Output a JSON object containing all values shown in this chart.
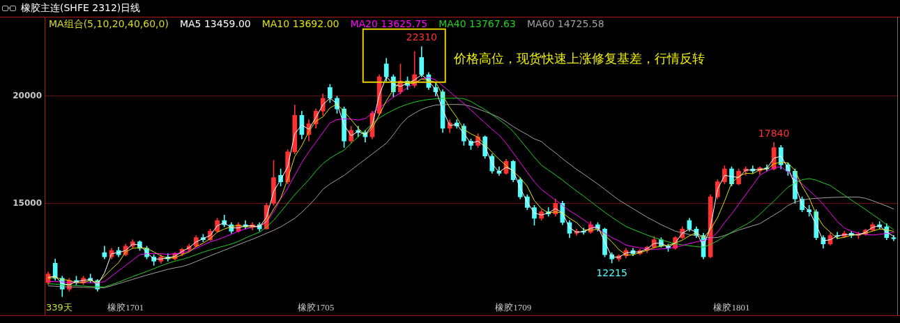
{
  "chart_data": {
    "type": "candlestick",
    "title": "橡胶主连(SHFE 2312)日线",
    "legend_title": "MA组合(5,10,20,40,60,0)",
    "categories": [
      null,
      null,
      null,
      null,
      null,
      null,
      null,
      null,
      null,
      null,
      null,
      "橡胶1701",
      null,
      null,
      null,
      null,
      null,
      null,
      null,
      null,
      null,
      null,
      null,
      null,
      null,
      null,
      null,
      null,
      null,
      null,
      null,
      null,
      null,
      null,
      null,
      null,
      null,
      null,
      "橡胶1705",
      null,
      null,
      null,
      null,
      null,
      null,
      null,
      null,
      null,
      null,
      null,
      null,
      null,
      null,
      null,
      null,
      null,
      null,
      null,
      null,
      null,
      null,
      null,
      null,
      null,
      null,
      null,
      "橡胶1709",
      null,
      null,
      null,
      null,
      null,
      null,
      null,
      null,
      null,
      null,
      null,
      null,
      null,
      null,
      null,
      null,
      null,
      null,
      null,
      null,
      null,
      null,
      null,
      null,
      null,
      null,
      null,
      null,
      null,
      null,
      "橡胶1801",
      null,
      null,
      null,
      null,
      null,
      null,
      null,
      null,
      null,
      null,
      null,
      null,
      null,
      null,
      null,
      null,
      null,
      null,
      null,
      null,
      null,
      null,
      null
    ],
    "series": [
      {
        "ohlc": [
          [
            11300,
            11800,
            11200,
            11700
          ],
          [
            12200,
            12400,
            11400,
            11500
          ],
          [
            11500,
            11600,
            10650,
            11000
          ],
          [
            11000,
            11500,
            10900,
            11400
          ],
          [
            11400,
            11600,
            11200,
            11300
          ],
          [
            11300,
            11600,
            11200,
            11500
          ],
          [
            11500,
            11700,
            11300,
            11400
          ],
          [
            11400,
            11450,
            10900,
            11000
          ],
          [
            12700,
            13000,
            12400,
            12500
          ],
          [
            12500,
            12900,
            12400,
            12800
          ],
          [
            12800,
            12950,
            12500,
            12600
          ],
          [
            12600,
            13100,
            12550,
            13000
          ],
          [
            13000,
            13300,
            12900,
            13200
          ],
          [
            13200,
            13250,
            12800,
            12900
          ],
          [
            12900,
            13000,
            12400,
            12500
          ],
          [
            12500,
            12600,
            12100,
            12300
          ],
          [
            12300,
            12600,
            12200,
            12500
          ],
          [
            12500,
            12650,
            12300,
            12400
          ],
          [
            12400,
            12700,
            12350,
            12650
          ],
          [
            12650,
            12900,
            12550,
            12850
          ],
          [
            12850,
            13100,
            12750,
            13000
          ],
          [
            13000,
            13500,
            12950,
            13400
          ],
          [
            13400,
            13550,
            13200,
            13300
          ],
          [
            13300,
            13800,
            13250,
            13700
          ],
          [
            13700,
            14300,
            13650,
            14200
          ],
          [
            14200,
            14450,
            13900,
            14000
          ],
          [
            14000,
            14100,
            13600,
            13700
          ],
          [
            13700,
            14100,
            13650,
            14000
          ],
          [
            14000,
            14200,
            13800,
            13900
          ],
          [
            13900,
            14100,
            13750,
            14000
          ],
          [
            14000,
            14100,
            13700,
            13800
          ],
          [
            13800,
            15000,
            13800,
            14900
          ],
          [
            15000,
            17000,
            14900,
            16200
          ],
          [
            16300,
            16600,
            15800,
            16000
          ],
          [
            16000,
            17500,
            15900,
            17400
          ],
          [
            17400,
            19580,
            17300,
            19100
          ],
          [
            19100,
            19300,
            18000,
            18200
          ],
          [
            18200,
            18900,
            17900,
            18700
          ],
          [
            18700,
            19400,
            18500,
            19300
          ],
          [
            19300,
            20100,
            19100,
            19900
          ],
          [
            20400,
            20550,
            19700,
            19900
          ],
          [
            19900,
            20000,
            19200,
            19400
          ],
          [
            19400,
            19500,
            17600,
            17900
          ],
          [
            17900,
            18600,
            17800,
            18400
          ],
          [
            18400,
            18600,
            18100,
            18300
          ],
          [
            18300,
            18400,
            17850,
            18100
          ],
          [
            18100,
            19300,
            18000,
            19200
          ],
          [
            19200,
            21000,
            19100,
            20900
          ],
          [
            21500,
            21760,
            20700,
            20900
          ],
          [
            20900,
            21000,
            19950,
            20200
          ],
          [
            20200,
            21500,
            20100,
            20700
          ],
          [
            20700,
            20900,
            20300,
            20500
          ],
          [
            20500,
            22080,
            20400,
            21000
          ],
          [
            21800,
            22310,
            20900,
            21000
          ],
          [
            21000,
            21100,
            20300,
            20400
          ],
          [
            20400,
            20600,
            20000,
            20200
          ],
          [
            20200,
            20300,
            18300,
            18500
          ],
          [
            18500,
            18900,
            18300,
            18750
          ],
          [
            18750,
            18900,
            18500,
            18600
          ],
          [
            18600,
            18700,
            17700,
            17900
          ],
          [
            17900,
            18000,
            17500,
            17700
          ],
          [
            17700,
            18250,
            17600,
            18100
          ],
          [
            18100,
            18150,
            17100,
            17200
          ],
          [
            17200,
            17300,
            16400,
            16500
          ],
          [
            16500,
            16700,
            16300,
            16400
          ],
          [
            16400,
            17050,
            16350,
            16950
          ],
          [
            16950,
            17000,
            16000,
            16100
          ],
          [
            16100,
            16200,
            15200,
            15300
          ],
          [
            15300,
            15400,
            14700,
            14800
          ],
          [
            14800,
            14900,
            13970,
            14300
          ],
          [
            14300,
            14700,
            14200,
            14600
          ],
          [
            14600,
            14800,
            14400,
            14500
          ],
          [
            14500,
            15200,
            14400,
            15000
          ],
          [
            15000,
            15100,
            14000,
            14100
          ],
          [
            14100,
            14200,
            13400,
            13600
          ],
          [
            13600,
            13800,
            13500,
            13700
          ],
          [
            13700,
            13850,
            13550,
            13650
          ],
          [
            13650,
            14150,
            13600,
            14000
          ],
          [
            14000,
            14100,
            13700,
            13800
          ],
          [
            13800,
            13850,
            12500,
            12600
          ],
          [
            12600,
            12700,
            12215,
            12400
          ],
          [
            12400,
            12600,
            12300,
            12550
          ],
          [
            12550,
            12900,
            12450,
            12800
          ],
          [
            12800,
            12900,
            12550,
            12650
          ],
          [
            12650,
            12850,
            12600,
            12800
          ],
          [
            12800,
            13000,
            12700,
            12950
          ],
          [
            12950,
            13450,
            12900,
            13300
          ],
          [
            13300,
            13400,
            12950,
            13000
          ],
          [
            13000,
            13100,
            12750,
            12900
          ],
          [
            12900,
            13450,
            12850,
            13400
          ],
          [
            13400,
            13900,
            13350,
            13800
          ],
          [
            14200,
            14300,
            13700,
            13800
          ],
          [
            13800,
            13900,
            13400,
            13500
          ],
          [
            13500,
            13600,
            12400,
            12500
          ],
          [
            12500,
            15400,
            12450,
            15300
          ],
          [
            15300,
            16100,
            15200,
            16000
          ],
          [
            16000,
            16750,
            15900,
            16600
          ],
          [
            16600,
            16700,
            15800,
            15900
          ],
          [
            15900,
            16600,
            15850,
            16500
          ],
          [
            16500,
            16700,
            16300,
            16600
          ],
          [
            16600,
            16750,
            16400,
            16500
          ],
          [
            16500,
            16700,
            16350,
            16650
          ],
          [
            16650,
            16800,
            16500,
            16600
          ],
          [
            16600,
            17840,
            16550,
            17600
          ],
          [
            17600,
            17700,
            16600,
            16800
          ],
          [
            16800,
            16900,
            16300,
            16500
          ],
          [
            16500,
            16600,
            15000,
            15200
          ],
          [
            15200,
            15300,
            14600,
            14700
          ],
          [
            14700,
            14900,
            14400,
            14600
          ],
          [
            14600,
            14700,
            13300,
            13400
          ],
          [
            13400,
            13500,
            12900,
            13100
          ],
          [
            13100,
            13600,
            13050,
            13500
          ],
          [
            13500,
            13650,
            13350,
            13450
          ],
          [
            13450,
            13700,
            13400,
            13600
          ],
          [
            13600,
            13700,
            13400,
            13500
          ],
          [
            13500,
            13650,
            13350,
            13550
          ],
          [
            13550,
            13800,
            13500,
            13750
          ],
          [
            13750,
            14100,
            13700,
            14000
          ],
          [
            14000,
            14150,
            13800,
            13900
          ],
          [
            13900,
            14050,
            13300,
            13400
          ],
          [
            13400,
            13500,
            13250,
            13350
          ]
        ],
        "colors": [
          "#ff3232",
          "#54fcfc",
          "#54fcfc",
          "#ff3232",
          "#54fcfc",
          "#ff3232",
          "#54fcfc",
          "#54fcfc",
          "#54fcfc",
          "#ff3232",
          "#54fcfc",
          "#ff3232",
          "#ff3232",
          "#54fcfc",
          "#54fcfc",
          "#54fcfc",
          "#ff3232",
          "#54fcfc",
          "#ff3232",
          "#ff3232",
          "#ff3232",
          "#ff3232",
          "#54fcfc",
          "#ff3232",
          "#ff3232",
          "#54fcfc",
          "#54fcfc",
          "#ff3232",
          "#54fcfc",
          "#ff3232",
          "#54fcfc",
          "#ff3232",
          "#ff3232",
          "#54fcfc",
          "#ff3232",
          "#ff3232",
          "#54fcfc",
          "#ff3232",
          "#ff3232",
          "#ff3232",
          "#54fcfc",
          "#54fcfc",
          "#54fcfc",
          "#ff3232",
          "#54fcfc",
          "#54fcfc",
          "#ff3232",
          "#ff3232",
          "#54fcfc",
          "#54fcfc",
          "#ff3232",
          "#54fcfc",
          "#ff3232",
          "#54fcfc",
          "#54fcfc",
          "#54fcfc",
          "#54fcfc",
          "#ff3232",
          "#54fcfc",
          "#54fcfc",
          "#54fcfc",
          "#ff3232",
          "#54fcfc",
          "#54fcfc",
          "#54fcfc",
          "#ff3232",
          "#54fcfc",
          "#54fcfc",
          "#54fcfc",
          "#54fcfc",
          "#ff3232",
          "#54fcfc",
          "#ff3232",
          "#54fcfc",
          "#54fcfc",
          "#ff3232",
          "#54fcfc",
          "#ff3232",
          "#54fcfc",
          "#54fcfc",
          "#54fcfc",
          "#ff3232",
          "#ff3232",
          "#54fcfc",
          "#ff3232",
          "#ff3232",
          "#ff3232",
          "#54fcfc",
          "#54fcfc",
          "#ff3232",
          "#ff3232",
          "#54fcfc",
          "#54fcfc",
          "#54fcfc",
          "#ff3232",
          "#ff3232",
          "#ff3232",
          "#54fcfc",
          "#ff3232",
          "#ff3232",
          "#54fcfc",
          "#ff3232",
          "#54fcfc",
          "#ff3232",
          "#54fcfc",
          "#54fcfc",
          "#54fcfc",
          "#54fcfc",
          "#54fcfc",
          "#54fcfc",
          "#54fcfc",
          "#ff3232",
          "#54fcfc",
          "#ff3232",
          "#54fcfc",
          "#ff3232",
          "#ff3232",
          "#ff3232",
          "#54fcfc",
          "#54fcfc",
          "#54fcfc"
        ]
      },
      {
        "type": "line",
        "name": "MA5 13459.00",
        "color": "#ffffff",
        "values": [
          11550,
          11600,
          11250,
          11200,
          11350,
          11400,
          11450,
          11200,
          11750,
          12650,
          12700,
          12800,
          13100,
          13050,
          12700,
          12400,
          12400,
          12450,
          12530,
          12750,
          12930,
          13200,
          13350,
          13500,
          13950,
          14100,
          13850,
          13850,
          13950,
          13950,
          13900,
          14350,
          15550,
          16100,
          16700,
          18250,
          18650,
          18450,
          19000,
          19600,
          19900,
          19650,
          18650,
          18150,
          18350,
          18200,
          18650,
          20050,
          20900,
          20550,
          20450,
          20600,
          20750,
          21000,
          20700,
          20300,
          19350,
          18630,
          18680,
          18250,
          17800,
          17900,
          17650,
          16850,
          16450,
          16680,
          16530,
          15700,
          15050,
          14550,
          14450,
          14550,
          14750,
          14550,
          13850,
          13650,
          13680,
          13830,
          13900,
          13200,
          12500,
          12480,
          12680,
          12730,
          12730,
          12880,
          13130,
          13150,
          12950,
          13150,
          13600,
          13800,
          13650,
          13000,
          13900,
          15650,
          16300,
          16250,
          16200,
          16550,
          16550,
          16580,
          16630,
          17100,
          17200,
          16650,
          15850,
          14950,
          14650,
          14000,
          13250,
          13300,
          13480,
          13530,
          13550,
          13530,
          13650,
          13880,
          13950,
          13650,
          13460
        ]
      },
      {
        "type": "line",
        "name": "MA10 13692.00",
        "color": "#e0e000",
        "values": [
          11500,
          11550,
          11450,
          11400,
          11300,
          11300,
          11400,
          11300,
          11600,
          11930,
          12230,
          12730,
          12900,
          12930,
          12900,
          12730,
          12550,
          12430,
          12460,
          12600,
          12730,
          12980,
          13140,
          13350,
          13650,
          13800,
          13900,
          13980,
          13900,
          13900,
          13930,
          14150,
          14730,
          15230,
          16130,
          17180,
          17680,
          18350,
          18830,
          19030,
          19450,
          19630,
          19280,
          18900,
          18500,
          18180,
          18500,
          19130,
          19780,
          20300,
          20680,
          20580,
          20600,
          20800,
          20730,
          20650,
          20030,
          19460,
          19010,
          18440,
          18240,
          18080,
          17730,
          17380,
          17050,
          16760,
          16490,
          16190,
          15790,
          15130,
          14750,
          14550,
          14600,
          14550,
          14300,
          14100,
          13760,
          13740,
          13790,
          13510,
          13200,
          12840,
          12590,
          12600,
          12700,
          12800,
          12930,
          13010,
          13040,
          13150,
          13280,
          13480,
          13630,
          13400,
          13780,
          14330,
          15100,
          15950,
          16250,
          16400,
          16380,
          16560,
          16590,
          16840,
          16910,
          16880,
          16530,
          15800,
          15250,
          14480,
          13950,
          13650,
          13360,
          13410,
          13510,
          13530,
          13600,
          13700,
          13800,
          13760,
          13690
        ]
      },
      {
        "type": "line",
        "name": "MA20 13625.75",
        "color": "#ff00ff",
        "values": [
          11350,
          11350,
          11330,
          11320,
          11300,
          11300,
          11300,
          11280,
          11350,
          11600,
          11850,
          12100,
          12350,
          12600,
          12650,
          12650,
          12650,
          12620,
          12650,
          12690,
          12780,
          12900,
          13050,
          13200,
          13300,
          13420,
          13550,
          13700,
          13800,
          13880,
          13930,
          14100,
          14600,
          15200,
          15700,
          16300,
          16900,
          17400,
          17850,
          18300,
          18750,
          18900,
          18940,
          18920,
          18880,
          18950,
          19200,
          19450,
          19700,
          19950,
          20150,
          20400,
          20600,
          20800,
          20870,
          20750,
          20480,
          20200,
          19920,
          19650,
          19350,
          19050,
          18750,
          18450,
          18180,
          17800,
          17350,
          16900,
          16450,
          16000,
          15650,
          15400,
          15150,
          14900,
          14650,
          14450,
          14230,
          14000,
          13800,
          13600,
          13400,
          13250,
          13050,
          12980,
          12920,
          12870,
          12850,
          12870,
          12900,
          12950,
          13030,
          13120,
          13200,
          13270,
          13350,
          13650,
          14100,
          14500,
          14950,
          15400,
          15850,
          16300,
          16500,
          16650,
          16700,
          16450,
          16170,
          15900,
          15600,
          15300,
          14950,
          14550,
          14150,
          13850,
          13700,
          13600,
          13550,
          13520,
          13550,
          13600,
          13630
        ]
      },
      {
        "type": "line",
        "name": "MA40 13767.63",
        "color": "#20d020",
        "values": [
          11250,
          11230,
          11200,
          11180,
          11160,
          11140,
          11120,
          11100,
          11100,
          11200,
          11320,
          11450,
          11580,
          11700,
          11820,
          11950,
          12080,
          12200,
          12300,
          12380,
          12480,
          12600,
          12720,
          12820,
          12920,
          13010,
          13100,
          13220,
          13380,
          13520,
          13650,
          13900,
          14200,
          14600,
          15000,
          15400,
          15750,
          16100,
          16500,
          16850,
          17100,
          17300,
          17480,
          17800,
          18100,
          18400,
          18700,
          18980,
          19180,
          19350,
          19500,
          19620,
          19720,
          19790,
          19840,
          19870,
          19890,
          19900,
          19900,
          19880,
          19750,
          19550,
          19370,
          19130,
          18900,
          18650,
          18350,
          17950,
          17550,
          17150,
          16780,
          16550,
          16320,
          16080,
          15820,
          15570,
          15330,
          15080,
          14830,
          14580,
          14350,
          14130,
          13920,
          13780,
          13650,
          13520,
          13400,
          13300,
          13200,
          13110,
          13060,
          13020,
          12980,
          12950,
          13080,
          13250,
          13450,
          13650,
          13830,
          14000,
          14200,
          14480,
          14800,
          15100,
          15430,
          15750,
          15950,
          16100,
          16150,
          16080,
          15950,
          15830,
          15600,
          15380,
          15150,
          14930,
          14710,
          14480,
          14250,
          14000,
          13770
        ]
      },
      {
        "type": "line",
        "name": "MA60 14725.58",
        "color": "#a0a0a0",
        "values": [
          11150,
          11130,
          11110,
          11100,
          11090,
          11080,
          11070,
          11060,
          11060,
          11150,
          11250,
          11350,
          11450,
          11550,
          11650,
          11740,
          11830,
          11920,
          11990,
          12050,
          12150,
          12280,
          12420,
          12550,
          12680,
          12810,
          12940,
          13070,
          13200,
          13320,
          13460,
          13600,
          13740,
          13900,
          14100,
          14300,
          14580,
          14900,
          15250,
          15650,
          15900,
          16100,
          16300,
          16550,
          16800,
          17050,
          17300,
          17550,
          17800,
          18200,
          18650,
          19000,
          19200,
          19380,
          19500,
          19580,
          19600,
          19610,
          19610,
          19600,
          19520,
          19400,
          19280,
          19150,
          19000,
          18800,
          18580,
          18380,
          18200,
          18000,
          17880,
          17600,
          17350,
          17080,
          16830,
          16580,
          16360,
          16130,
          15900,
          15650,
          15400,
          15150,
          14950,
          14750,
          14550,
          14350,
          14180,
          14000,
          13850,
          13700,
          13620,
          13540,
          13480,
          13430,
          13390,
          13400,
          13500,
          13620,
          13750,
          13850,
          13950,
          14050,
          14250,
          14450,
          14650,
          14900,
          15050,
          15150,
          15200,
          15230,
          15250,
          15270,
          15280,
          15290,
          15290,
          15290,
          15230,
          15120,
          15000,
          14870,
          14730
        ]
      }
    ],
    "ylim": [
      9780,
      23700
    ],
    "yticks": [
      15000,
      20000
    ],
    "grid": "y",
    "legend": "top left",
    "annotations": [
      "价格高位，现货快速上涨修复基差，行情反转",
      {
        "text": "22310",
        "y": 22310
      },
      {
        "text": "17840",
        "y": 17840
      },
      {
        "text": "12215",
        "y": 12215
      },
      "339天"
    ]
  }
}
